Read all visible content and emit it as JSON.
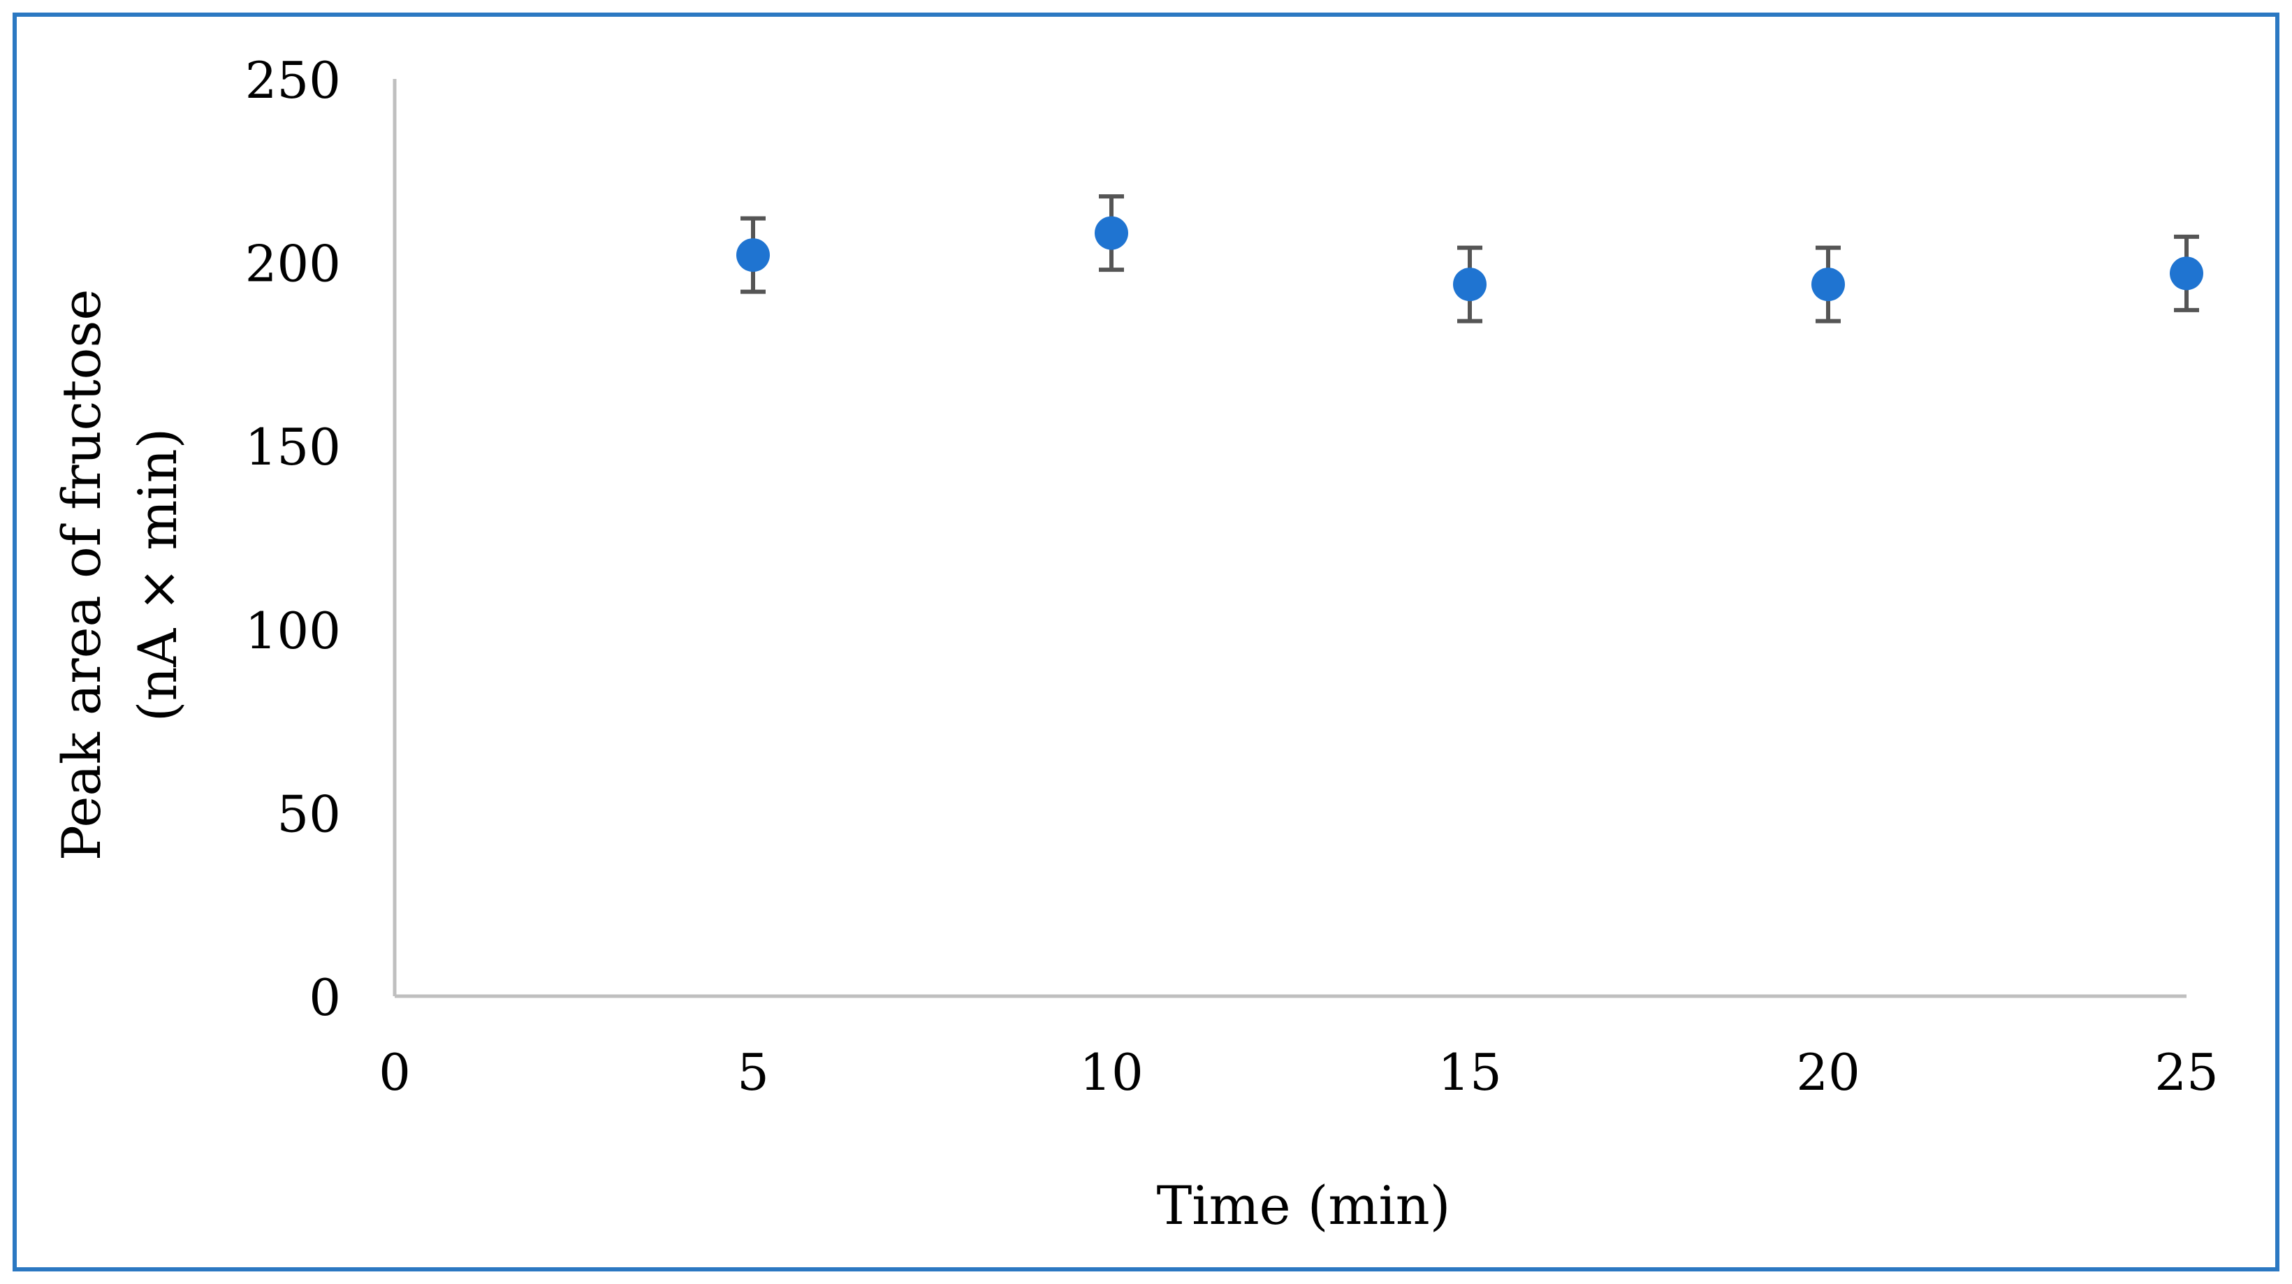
{
  "chart_data": {
    "type": "scatter",
    "title": "",
    "xlabel": "Time (min)",
    "ylabel_lines": [
      "Peak area of fructose",
      "(nA × min)"
    ],
    "xlim": [
      0,
      25
    ],
    "ylim": [
      0,
      250
    ],
    "x_ticks": [
      "0",
      "5",
      "10",
      "15",
      "20",
      "25"
    ],
    "y_ticks": [
      "0",
      "50",
      "100",
      "150",
      "200",
      "250"
    ],
    "grid": false,
    "legend": "none",
    "series": [
      {
        "x": [
          5,
          10,
          15,
          20,
          25
        ],
        "y": [
          202,
          208,
          194,
          194,
          197
        ],
        "error": [
          10,
          10,
          10,
          10,
          10
        ]
      }
    ]
  },
  "colors": {
    "marker": "#1f74d1",
    "error_bar": "#555555",
    "axis": "#bfbfbf",
    "frame": "#2b78c2"
  }
}
